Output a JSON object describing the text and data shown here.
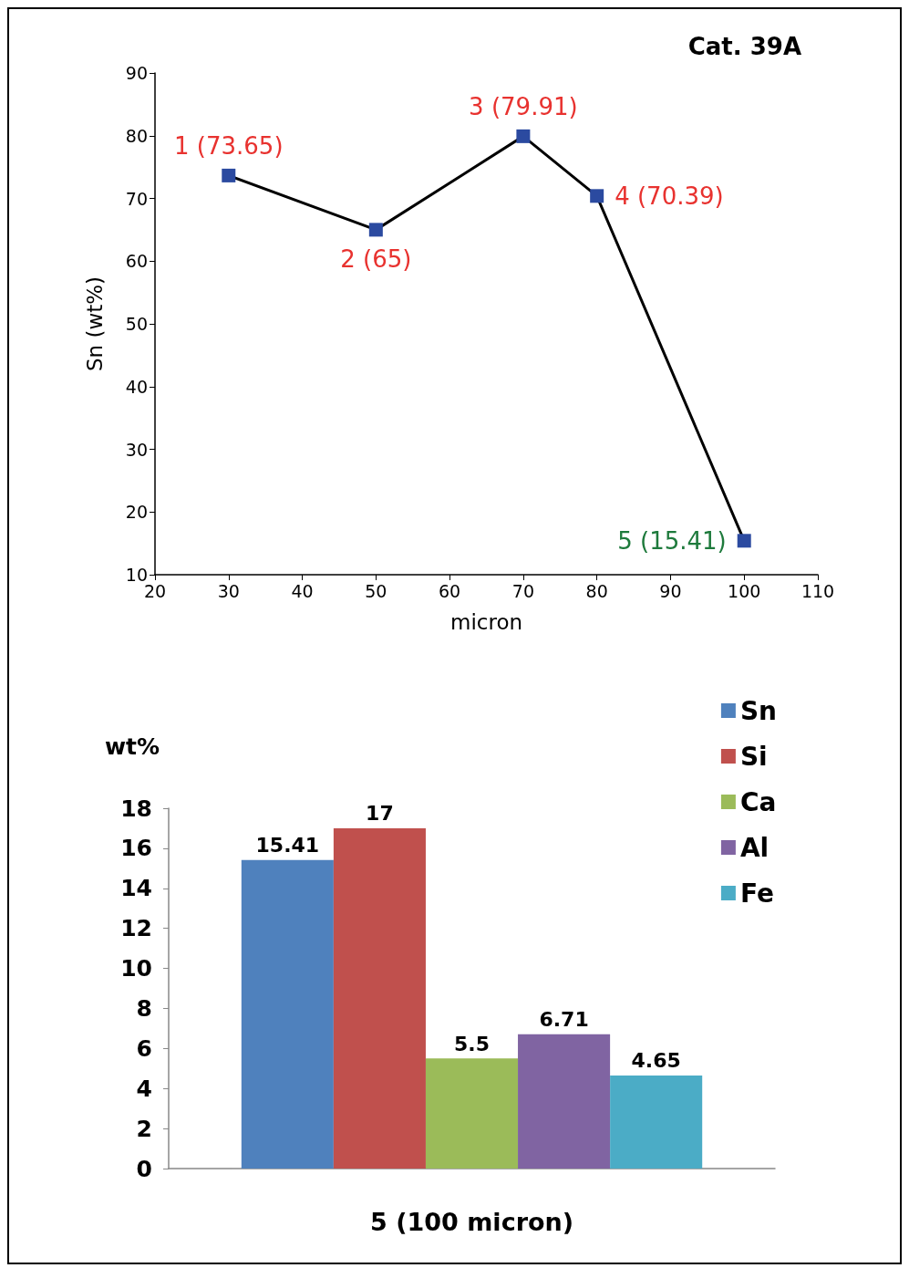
{
  "chart_data": [
    {
      "type": "line",
      "annotations": [
        "Cat. 39A"
      ],
      "xlabel": "micron",
      "ylabel": "Sn (wt%)",
      "x": [
        30,
        50,
        70,
        80,
        100
      ],
      "series": [
        {
          "color": "#2b4aa0",
          "values": [
            73.65,
            65,
            79.91,
            70.39,
            15.41
          ],
          "value_labels": [
            "1 (73.65)",
            "2 (65)",
            "3 (79.91)",
            "4 (70.39)",
            "5 (15.41)"
          ]
        }
      ],
      "xlim": [
        20,
        110
      ],
      "xticks": [
        20,
        30,
        40,
        50,
        60,
        70,
        80,
        90,
        100,
        110
      ],
      "ylim": [
        10,
        90
      ],
      "yticks": [
        10,
        20,
        30,
        40,
        50,
        60,
        70,
        80,
        90
      ],
      "marker": "square",
      "line_style": "solid"
    },
    {
      "type": "bar",
      "categories": [
        null
      ],
      "xlabel": "5 (100 micron)",
      "ylabel": "wt%",
      "series": [
        {
          "name": "Sn",
          "color": "#4f81bd",
          "values": [
            15.41
          ]
        },
        {
          "name": "Si",
          "color": "#c0504d",
          "values": [
            17
          ]
        },
        {
          "name": "Ca",
          "color": "#9bbb59",
          "values": [
            5.5
          ]
        },
        {
          "name": "Al",
          "color": "#8064a2",
          "values": [
            6.71
          ]
        },
        {
          "name": "Fe",
          "color": "#4bacc6",
          "values": [
            4.65
          ]
        }
      ],
      "ylim": [
        0,
        18
      ],
      "yticks": [
        0,
        2,
        4,
        6,
        8,
        10,
        12,
        14,
        16,
        18
      ],
      "data_labels": true,
      "legend": "right"
    }
  ]
}
